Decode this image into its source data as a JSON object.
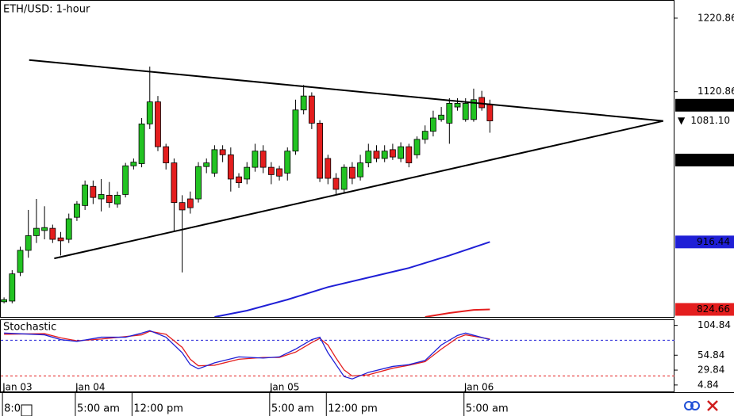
{
  "chart_data": [
    {
      "type": "candlestick",
      "title": "ETH/USD: 1-hour",
      "xlim": [
        -0.5,
        82.8
      ],
      "ylim": [
        814.4,
        1244.5
      ],
      "yticks": [
        1220.86,
        1120.86
      ],
      "up_color": "#22c322",
      "down_color": "#e41e1e",
      "candles": {
        "x": [
          0,
          1,
          2,
          3,
          4,
          5,
          6,
          7,
          8,
          9,
          10,
          11,
          12,
          13,
          14,
          15,
          16,
          17,
          18,
          19,
          20,
          21,
          22,
          23,
          24,
          25,
          26,
          27,
          28,
          29,
          30,
          31,
          32,
          33,
          34,
          35,
          36,
          37,
          38,
          39,
          40,
          41,
          42,
          43,
          44,
          45,
          46,
          47,
          48,
          49,
          50,
          51,
          52,
          53,
          54,
          55,
          56,
          57,
          58,
          59,
          60
        ],
        "open": [
          835,
          836,
          875,
          905,
          925,
          932,
          935,
          922,
          920,
          950,
          966,
          992,
          975,
          980,
          968,
          981,
          1020,
          1023,
          1077,
          1107,
          1046,
          1024,
          970,
          975,
          975,
          1019,
          1010,
          1042,
          1035,
          1005,
          1002,
          1018,
          1040,
          1018,
          1016,
          1010,
          1040,
          1096,
          1115,
          1078,
          1030,
          1003,
          988,
          1018,
          1005,
          1024,
          1040,
          1030,
          1042,
          1030,
          1046,
          1035,
          1056,
          1067,
          1083,
          1078,
          1100,
          1083,
          1083,
          1113,
          1104
        ],
        "high": [
          841,
          878,
          910,
          960,
          975,
          965,
          940,
          930,
          955,
          972,
          1000,
          1000,
          1002,
          998,
          985,
          1024,
          1030,
          1085,
          1155,
          1115,
          1050,
          1030,
          980,
          985,
          1025,
          1030,
          1048,
          1048,
          1045,
          1010,
          1025,
          1050,
          1048,
          1025,
          1020,
          1045,
          1110,
          1130,
          1120,
          1082,
          1035,
          1010,
          1022,
          1025,
          1035,
          1050,
          1048,
          1048,
          1050,
          1052,
          1050,
          1060,
          1075,
          1095,
          1100,
          1112,
          1112,
          1112,
          1125,
          1122,
          1110
        ],
        "low": [
          833,
          833,
          870,
          895,
          915,
          920,
          915,
          898,
          915,
          945,
          960,
          968,
          958,
          963,
          963,
          977,
          1015,
          1018,
          1070,
          1040,
          1015,
          930,
          875,
          955,
          970,
          1010,
          1005,
          1025,
          985,
          990,
          995,
          1012,
          1010,
          995,
          1000,
          1000,
          1035,
          1090,
          1070,
          998,
          995,
          980,
          983,
          995,
          1000,
          1018,
          1025,
          1025,
          1028,
          1025,
          1018,
          1030,
          1050,
          1060,
          1080,
          1050,
          1095,
          1080,
          1080,
          1095,
          1065
        ],
        "close": [
          838,
          873,
          905,
          925,
          935,
          936,
          920,
          918,
          948,
          968,
          994,
          977,
          981,
          970,
          980,
          1020,
          1025,
          1077,
          1107,
          1046,
          1024,
          970,
          960,
          963,
          1019,
          1024,
          1042,
          1035,
          1002,
          997,
          1018,
          1040,
          1018,
          1008,
          1006,
          1040,
          1096,
          1115,
          1078,
          1003,
          1003,
          988,
          1018,
          1003,
          1024,
          1040,
          1030,
          1040,
          1032,
          1046,
          1024,
          1056,
          1067,
          1085,
          1089,
          1105,
          1105,
          1105,
          1110,
          1099,
          1081.1
        ]
      },
      "moving_averages": [
        {
          "color": "#1f1fd6",
          "x": [
            26,
            30,
            35,
            40,
            45,
            50,
            55,
            60
          ],
          "values": [
            814.4,
            823,
            838,
            855,
            868,
            881,
            898,
            916.44
          ]
        },
        {
          "color": "#e41e1e",
          "x": [
            52,
            55,
            58,
            60
          ],
          "values": [
            814.4,
            819.8,
            824,
            824.66
          ]
        }
      ],
      "trendlines": [
        {
          "color": "#000000",
          "x": [
            3.1,
            81.4
          ],
          "values": [
            1163.9,
            1081
          ]
        },
        {
          "color": "#000000",
          "x": [
            6.2,
            81.4
          ],
          "values": [
            894,
            1081
          ]
        }
      ],
      "markers": [
        {
          "value": 1102.43,
          "bg": "#000000",
          "fg": "#ffffff"
        },
        {
          "value": {
            "value": 1081.1,
            "label": "1081.10"
          },
          "bg": "#ffffff",
          "fg": "#000000",
          "arrow": "▼"
        },
        {
          "value": 1027.84,
          "bg": "#000000",
          "fg": "#ffffff"
        },
        {
          "value": 916.44,
          "bg": "#1f1fd6",
          "fg": "#ffffff"
        },
        {
          "value": 824.66,
          "bg": "#e41e1e",
          "fg": "#ffffff"
        }
      ]
    },
    {
      "type": "line",
      "title": "Stochastic",
      "xlim": [
        -0.5,
        82.8
      ],
      "ylim": [
        -7.3,
        113.7
      ],
      "yticks": [
        104.84,
        54.84,
        29.84,
        4.84
      ],
      "levels": [
        {
          "value": 80,
          "color": "#1f1fd6"
        },
        {
          "value": 20,
          "color": "#e41e1e"
        }
      ],
      "series": [
        {
          "color": "#e41e1e",
          "x": [
            0,
            5,
            7,
            9,
            12,
            15,
            17,
            18,
            20,
            22,
            23,
            24,
            26,
            29,
            32,
            34,
            36,
            38,
            39,
            40,
            41,
            42,
            43,
            45,
            48,
            50,
            52,
            54,
            56,
            57,
            60
          ],
          "values": [
            90,
            91,
            84,
            79,
            82,
            86,
            89,
            95,
            90,
            68,
            48,
            37,
            38,
            48,
            51,
            51,
            60,
            76,
            83,
            72,
            50,
            30,
            20,
            22,
            33,
            38,
            44,
            65,
            84,
            89,
            82
          ]
        },
        {
          "color": "#1f1fd6",
          "x": [
            0,
            5,
            7,
            9,
            12,
            15,
            17,
            18,
            20,
            22,
            23,
            24,
            26,
            29,
            32,
            34,
            36,
            38,
            39,
            40,
            41,
            42,
            43,
            45,
            48,
            50,
            52,
            54,
            56,
            57,
            60
          ],
          "values": [
            92,
            89,
            81,
            78,
            85,
            85,
            92,
            96,
            85,
            59,
            39,
            32,
            42,
            52,
            50,
            52,
            65,
            81,
            85,
            59,
            39,
            19,
            15,
            26,
            36,
            39,
            46,
            72,
            88,
            92,
            81
          ]
        }
      ],
      "date_ticks": [
        {
          "value": 0,
          "label": "Jan 03"
        },
        {
          "value": 9,
          "label": "Jan 04"
        },
        {
          "value": 33,
          "label": "Jan 05"
        },
        {
          "value": 57,
          "label": "Jan 06"
        }
      ],
      "xticks": [
        {
          "value": 0,
          "label": "8:0"
        },
        {
          "value": 9,
          "label": "5:00 am"
        },
        {
          "value": 16,
          "label": "12:00 pm"
        },
        {
          "value": 33,
          "label": "5:00 am"
        },
        {
          "value": 40,
          "label": "12:00 pm"
        },
        {
          "value": 57,
          "label": "5:00 am"
        }
      ]
    }
  ]
}
